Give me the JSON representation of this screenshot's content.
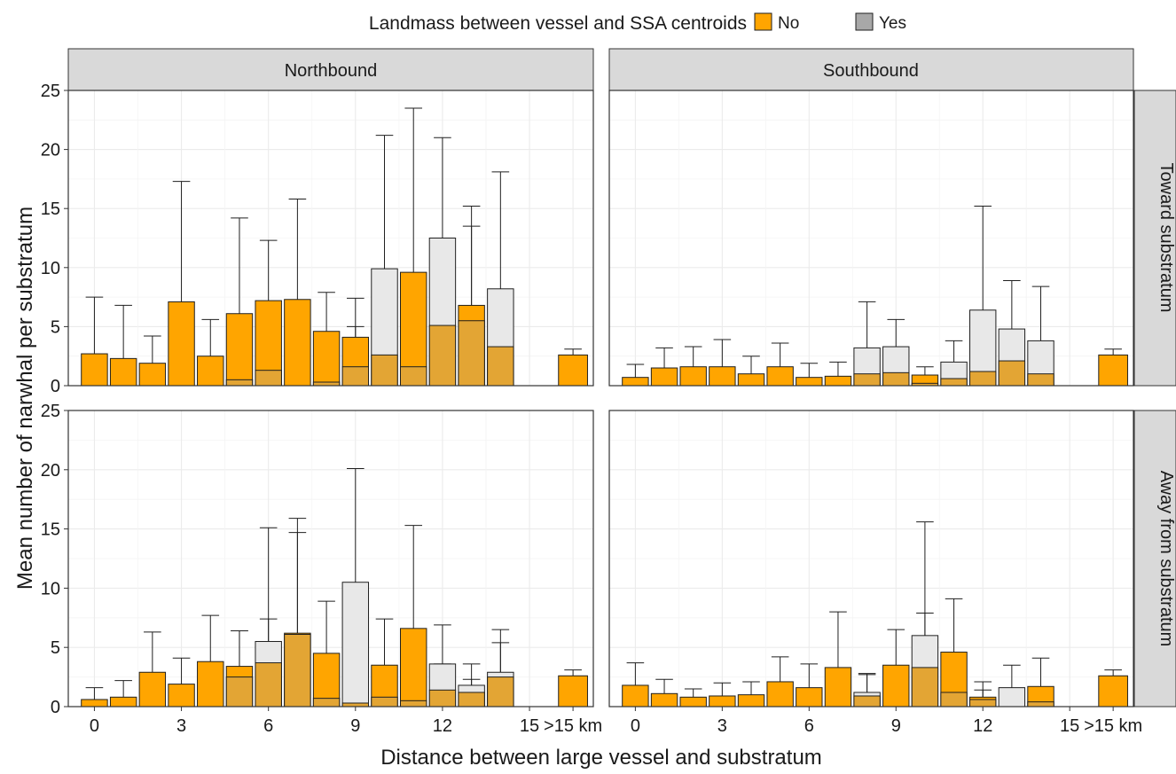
{
  "chart_data": {
    "type": "bar",
    "layout": "faceted 2x2 grid, stacked overlapping bars with error bars",
    "xlabel": "Distance between large vessel and substratum",
    "ylabel": "Mean number of narwhal per substratum",
    "ylim": [
      0,
      25
    ],
    "y_ticks": [
      "0",
      "5",
      "10",
      "15",
      "20",
      "25"
    ],
    "x_ticks": [
      "0",
      "3",
      "6",
      "9",
      "12",
      "15",
      ">15 km"
    ],
    "x_tick_positions": [
      0,
      3,
      6,
      9,
      12,
      15,
      16.5
    ],
    "xlim": [
      -0.9,
      17.2
    ],
    "grid": true,
    "legend": {
      "title": "Landmass between vessel and SSA centroids",
      "position": "top",
      "entries": [
        {
          "label": "No",
          "color": "#ffa500"
        },
        {
          "label": "Yes",
          "color": "#a8a8a8"
        }
      ]
    },
    "colors": {
      "no": "#ffa500",
      "yes_fill": "#e8e8e8",
      "overlap": "#e3a534",
      "inf_error": "#f26d6d",
      "strip": "#d9d9d9"
    },
    "column_strips": [
      "Northbound",
      "Southbound"
    ],
    "row_strips": [
      "Toward substratum",
      "Away from substratum"
    ],
    "panels": [
      {
        "col": "Northbound",
        "row": "Toward substratum",
        "no": [
          {
            "x": 0,
            "y": 2.7,
            "err": 7.5
          },
          {
            "x": 1,
            "y": 2.3,
            "err": 6.8
          },
          {
            "x": 2,
            "y": 1.9,
            "err": 4.2
          },
          {
            "x": 3,
            "y": 7.1,
            "err": 17.3
          },
          {
            "x": 4,
            "y": 2.5,
            "err": 5.6
          },
          {
            "x": 5,
            "y": 6.1,
            "err": 14.2
          },
          {
            "x": 6,
            "y": 7.2,
            "err": 12.3
          },
          {
            "x": 7,
            "y": 7.3,
            "err": 15.8
          },
          {
            "x": 8,
            "y": 4.6,
            "err": 7.9
          },
          {
            "x": 9,
            "y": 4.1,
            "err": 7.4
          },
          {
            "x": 10,
            "y": 2.6,
            "err": 6.0
          },
          {
            "x": 11,
            "y": 9.6,
            "err": 23.5
          },
          {
            "x": 12,
            "y": 5.1,
            "err": 9.3
          },
          {
            "x": 13,
            "y": 6.8,
            "err": 13.5
          },
          {
            "x": 14,
            "y": 3.3,
            "err": 6.5
          }
        ],
        "yes": [
          {
            "x": 5,
            "y": 0.5,
            "err": 0.5
          },
          {
            "x": 6,
            "y": 1.3,
            "err": 1.3
          },
          {
            "x": 8,
            "y": 0.3,
            "err": 0.3
          },
          {
            "x": 9,
            "y": 1.6,
            "err": 5.0
          },
          {
            "x": 10,
            "y": 9.9,
            "err": 21.2
          },
          {
            "x": 11,
            "y": 1.6,
            "err": 1.6
          },
          {
            "x": 12,
            "y": 12.5,
            "err": 21.0
          },
          {
            "x": 13,
            "y": 5.5,
            "err": 15.2
          },
          {
            "x": 14,
            "y": 8.2,
            "err": 18.1
          }
        ],
        "inf": {
          "x": 16.5,
          "y": 2.6,
          "err": 3.1
        }
      },
      {
        "col": "Southbound",
        "row": "Toward substratum",
        "no": [
          {
            "x": 0,
            "y": 0.7,
            "err": 1.8
          },
          {
            "x": 1,
            "y": 1.5,
            "err": 3.2
          },
          {
            "x": 2,
            "y": 1.6,
            "err": 3.3
          },
          {
            "x": 3,
            "y": 1.6,
            "err": 3.9
          },
          {
            "x": 4,
            "y": 1.0,
            "err": 2.5
          },
          {
            "x": 5,
            "y": 1.6,
            "err": 3.6
          },
          {
            "x": 6,
            "y": 0.7,
            "err": 1.9
          },
          {
            "x": 7,
            "y": 0.8,
            "err": 2.0
          },
          {
            "x": 8,
            "y": 1.0,
            "err": 2.0
          },
          {
            "x": 9,
            "y": 1.1,
            "err": 2.3
          },
          {
            "x": 10,
            "y": 0.9,
            "err": 1.6
          },
          {
            "x": 11,
            "y": 0.6,
            "err": 1.2
          },
          {
            "x": 12,
            "y": 1.2,
            "err": 2.5
          },
          {
            "x": 13,
            "y": 2.1,
            "err": 4.1
          },
          {
            "x": 14,
            "y": 1.0,
            "err": 2.1
          }
        ],
        "yes": [
          {
            "x": 8,
            "y": 3.2,
            "err": 7.1
          },
          {
            "x": 9,
            "y": 3.3,
            "err": 5.6
          },
          {
            "x": 10,
            "y": 0.2,
            "err": 0.2
          },
          {
            "x": 11,
            "y": 2.0,
            "err": 3.8
          },
          {
            "x": 12,
            "y": 6.4,
            "err": 15.2
          },
          {
            "x": 13,
            "y": 4.8,
            "err": 8.9
          },
          {
            "x": 14,
            "y": 3.8,
            "err": 8.4
          }
        ],
        "inf": {
          "x": 16.5,
          "y": 2.6,
          "err": 3.1
        }
      },
      {
        "col": "Northbound",
        "row": "Away from substratum",
        "no": [
          {
            "x": 0,
            "y": 0.6,
            "err": 1.6
          },
          {
            "x": 1,
            "y": 0.8,
            "err": 2.2
          },
          {
            "x": 2,
            "y": 2.9,
            "err": 6.3
          },
          {
            "x": 3,
            "y": 1.9,
            "err": 4.1
          },
          {
            "x": 4,
            "y": 3.8,
            "err": 7.7
          },
          {
            "x": 5,
            "y": 3.4,
            "err": 6.4
          },
          {
            "x": 6,
            "y": 3.7,
            "err": 7.4
          },
          {
            "x": 7,
            "y": 6.2,
            "err": 15.9
          },
          {
            "x": 8,
            "y": 4.5,
            "err": 8.9
          },
          {
            "x": 9,
            "y": 0.3,
            "err": 0.9
          },
          {
            "x": 10,
            "y": 3.5,
            "err": 7.4
          },
          {
            "x": 11,
            "y": 6.6,
            "err": 15.3
          },
          {
            "x": 12,
            "y": 1.4,
            "err": 3.6
          },
          {
            "x": 13,
            "y": 1.2,
            "err": 3.6
          },
          {
            "x": 14,
            "y": 2.5,
            "err": 6.5
          }
        ],
        "yes": [
          {
            "x": 5,
            "y": 2.5,
            "err": 6.4
          },
          {
            "x": 6,
            "y": 5.5,
            "err": 15.1
          },
          {
            "x": 7,
            "y": 6.1,
            "err": 14.7
          },
          {
            "x": 8,
            "y": 0.7,
            "err": 0.7
          },
          {
            "x": 9,
            "y": 10.5,
            "err": 20.1
          },
          {
            "x": 10,
            "y": 0.8,
            "err": 0.8
          },
          {
            "x": 11,
            "y": 0.5,
            "err": 0.5
          },
          {
            "x": 12,
            "y": 3.6,
            "err": 6.9
          },
          {
            "x": 13,
            "y": 1.8,
            "err": 2.3
          },
          {
            "x": 14,
            "y": 2.9,
            "err": 5.4
          }
        ],
        "inf": {
          "x": 16.5,
          "y": 2.6,
          "err": 3.1
        }
      },
      {
        "col": "Southbound",
        "row": "Away from substratum",
        "no": [
          {
            "x": 0,
            "y": 1.8,
            "err": 3.7
          },
          {
            "x": 1,
            "y": 1.1,
            "err": 2.3
          },
          {
            "x": 2,
            "y": 0.8,
            "err": 1.5
          },
          {
            "x": 3,
            "y": 0.9,
            "err": 2.0
          },
          {
            "x": 4,
            "y": 1.0,
            "err": 2.1
          },
          {
            "x": 5,
            "y": 2.1,
            "err": 4.2
          },
          {
            "x": 6,
            "y": 1.6,
            "err": 3.6
          },
          {
            "x": 7,
            "y": 3.3,
            "err": 8.0
          },
          {
            "x": 8,
            "y": 0.9,
            "err": 2.7
          },
          {
            "x": 9,
            "y": 3.5,
            "err": 6.5
          },
          {
            "x": 10,
            "y": 3.3,
            "err": 7.9
          },
          {
            "x": 11,
            "y": 4.6,
            "err": 9.1
          },
          {
            "x": 12,
            "y": 0.8,
            "err": 2.1
          },
          {
            "x": 14,
            "y": 1.7,
            "err": 4.1
          }
        ],
        "yes": [
          {
            "x": 8,
            "y": 1.2,
            "err": 2.8
          },
          {
            "x": 10,
            "y": 6.0,
            "err": 15.6
          },
          {
            "x": 11,
            "y": 1.2,
            "err": 1.2
          },
          {
            "x": 12,
            "y": 0.6,
            "err": 1.4
          },
          {
            "x": 13,
            "y": 1.6,
            "err": 3.5
          },
          {
            "x": 14,
            "y": 0.4,
            "err": 0.4
          }
        ],
        "inf": {
          "x": 16.5,
          "y": 2.6,
          "err": 3.1
        }
      }
    ]
  }
}
